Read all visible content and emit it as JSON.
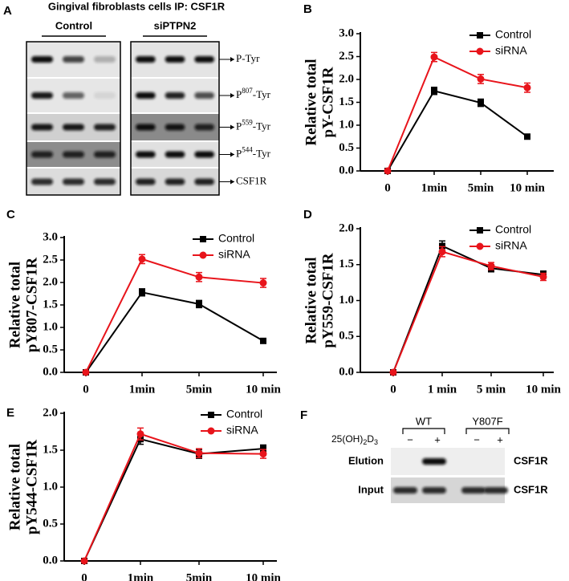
{
  "blot_a": {
    "label": "A",
    "title": "Gingival  fibroblasts cells IP: CSF1R",
    "groups": [
      "Control",
      "siPTPN2"
    ],
    "rows": [
      {
        "text": "P-Tyr"
      },
      {
        "prefix": "P",
        "sup": "807",
        "suffix": "-Tyr"
      },
      {
        "prefix": "P",
        "sup": "559",
        "suffix": "-Tyr"
      },
      {
        "prefix": "P",
        "sup": "544",
        "suffix": "-Tyr"
      },
      {
        "text": "CSF1R"
      }
    ]
  },
  "blot_f": {
    "label": "F",
    "groups": [
      "WT",
      "Y807F"
    ],
    "treatment": [
      "25(OH)",
      "2",
      "D",
      "3"
    ],
    "signs": [
      "−",
      "+",
      "−",
      "+"
    ],
    "rows": [
      "Elution",
      "Input"
    ],
    "targets": [
      "CSF1R",
      "CSF1R"
    ]
  },
  "chart_data": [
    {
      "type": "line",
      "label": "B",
      "ylabel": [
        "Relative total",
        "pY-CSF1R"
      ],
      "categories": [
        "0",
        "1min",
        "5min",
        "10 min"
      ],
      "series": [
        {
          "name": "Control",
          "color": "#000000",
          "marker": "square",
          "values": [
            0,
            1.75,
            1.49,
            0.75
          ],
          "errors": [
            0,
            0.08,
            0.08,
            0.05
          ]
        },
        {
          "name": "siRNA",
          "color": "#e8141b",
          "marker": "circle",
          "values": [
            0,
            2.49,
            2.01,
            1.82
          ],
          "errors": [
            0,
            0.1,
            0.1,
            0.1
          ]
        }
      ],
      "ylim": [
        0,
        3
      ],
      "yticks": [
        {
          "value": 0,
          "label": "0.0"
        },
        0.5,
        {
          "value": 1,
          "label": "1.0"
        },
        1.5,
        {
          "value": 2,
          "label": "2.0"
        },
        2.5,
        {
          "value": 3,
          "label": "3.0"
        }
      ],
      "legend": "upper right",
      "grid": false
    },
    {
      "type": "line",
      "label": "C",
      "ylabel": [
        "Relative total",
        "pY807-CSF1R"
      ],
      "categories": [
        "0",
        "1min",
        "5min",
        "10 min"
      ],
      "series": [
        {
          "name": "Control",
          "color": "#000000",
          "marker": "square",
          "values": [
            0,
            1.78,
            1.52,
            0.7
          ],
          "errors": [
            0,
            0.08,
            0.08,
            0.05
          ]
        },
        {
          "name": "siRNA",
          "color": "#e8141b",
          "marker": "circle",
          "values": [
            0,
            2.52,
            2.12,
            1.99
          ],
          "errors": [
            0,
            0.1,
            0.1,
            0.1
          ]
        }
      ],
      "ylim": [
        0,
        3
      ],
      "yticks": [
        {
          "value": 0,
          "label": "0.0"
        },
        0.5,
        {
          "value": 1,
          "label": "1.0"
        },
        1.5,
        {
          "value": 2,
          "label": "2.0"
        },
        2.5,
        {
          "value": 3,
          "label": "3.0"
        }
      ],
      "legend": "upper right",
      "grid": false
    },
    {
      "type": "line",
      "label": "D",
      "ylabel": [
        "Relative total",
        "pY559-CSF1R"
      ],
      "categories": [
        "0",
        "1 min",
        "5 min",
        "10 min"
      ],
      "series": [
        {
          "name": "Control",
          "color": "#000000",
          "marker": "square",
          "values": [
            0,
            1.76,
            1.45,
            1.36
          ],
          "errors": [
            0,
            0.07,
            0.05,
            0.05
          ]
        },
        {
          "name": "siRNA",
          "color": "#e8141b",
          "marker": "circle",
          "values": [
            0,
            1.68,
            1.48,
            1.33
          ],
          "errors": [
            0,
            0.07,
            0.05,
            0.05
          ]
        }
      ],
      "ylim": [
        0,
        2
      ],
      "yticks": [
        {
          "value": 0,
          "label": "0.0"
        },
        0.5,
        {
          "value": 1,
          "label": "1.0"
        },
        1.5,
        {
          "value": 2,
          "label": "2.0"
        }
      ],
      "legend": "upper right",
      "grid": false
    },
    {
      "type": "line",
      "label": "E",
      "ylabel": [
        "Relative total",
        "pY544-CSF1R"
      ],
      "categories": [
        "0",
        "1min",
        "5min",
        "10 min"
      ],
      "series": [
        {
          "name": "Control",
          "color": "#000000",
          "marker": "square",
          "values": [
            0,
            1.65,
            1.45,
            1.52
          ],
          "errors": [
            0,
            0.07,
            0.06,
            0.05
          ]
        },
        {
          "name": "siRNA",
          "color": "#e8141b",
          "marker": "circle",
          "values": [
            0,
            1.72,
            1.46,
            1.45
          ],
          "errors": [
            0,
            0.08,
            0.06,
            0.06
          ]
        }
      ],
      "ylim": [
        0,
        2
      ],
      "yticks": [
        {
          "value": 0,
          "label": "0.0"
        },
        0.5,
        {
          "value": 1,
          "label": "1.0"
        },
        1.5,
        {
          "value": 2,
          "label": "2.0"
        }
      ],
      "legend": "upper left",
      "grid": false
    }
  ]
}
